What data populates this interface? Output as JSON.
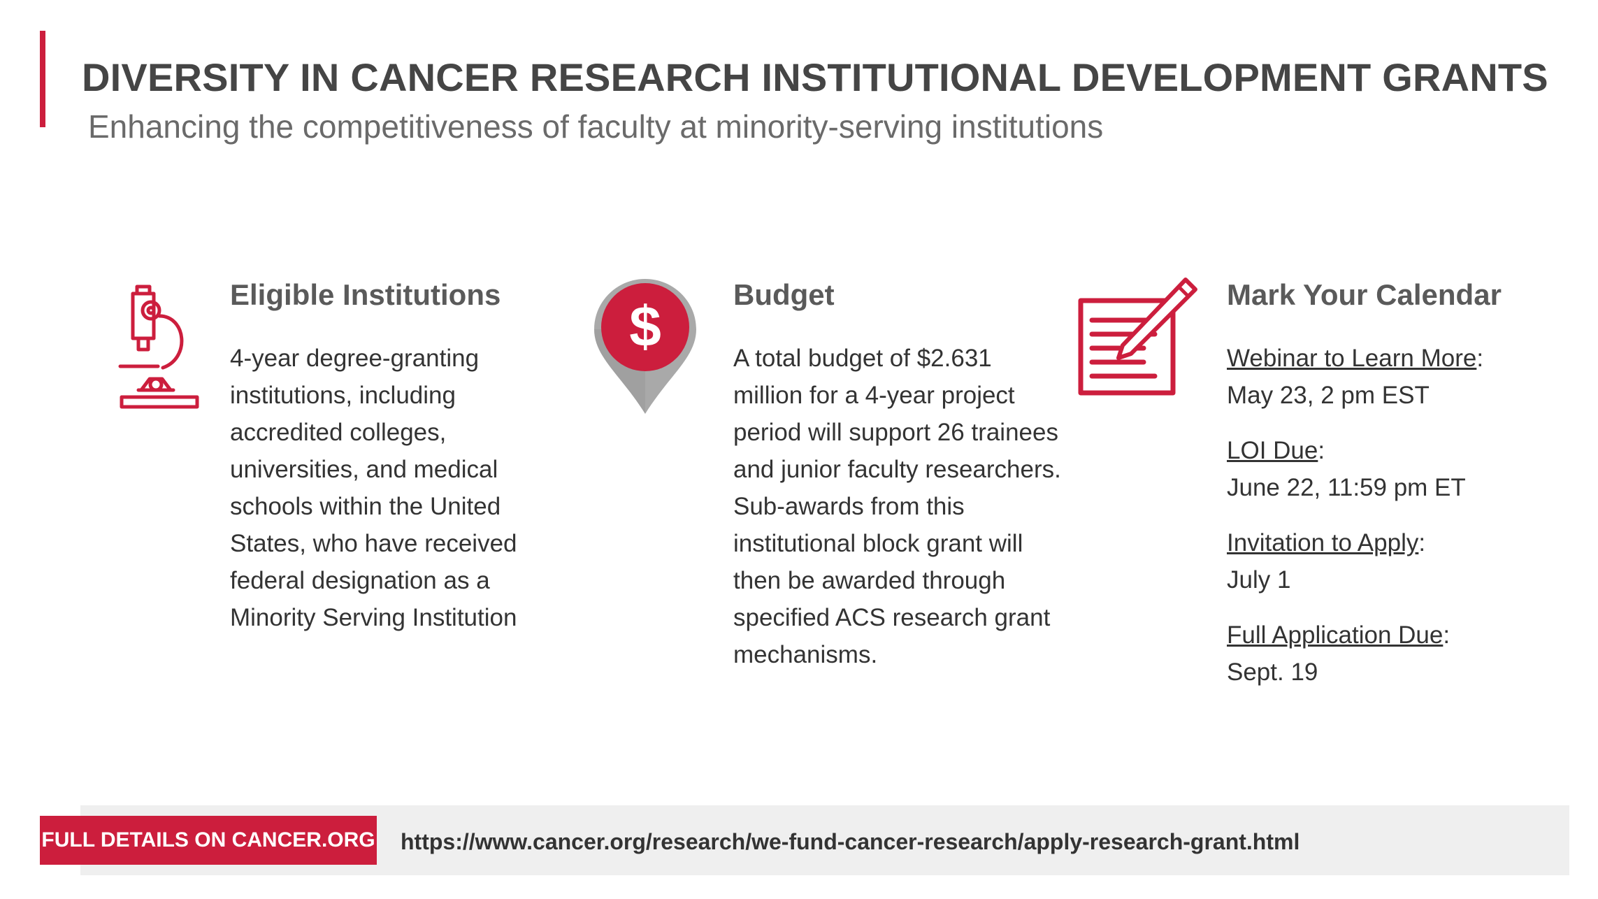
{
  "header": {
    "title": "DIVERSITY IN CANCER RESEARCH INSTITUTIONAL DEVELOPMENT GRANTS",
    "subtitle": "Enhancing the competitiveness of faculty at minority-serving institutions"
  },
  "columns": {
    "eligible": {
      "icon": "microscope-icon",
      "heading": "Eligible Institutions",
      "text": "4-year degree-granting institutions, including accredited colleges, universities, and medical schools within the United States, who have received federal designation as a Minority Serving Institution"
    },
    "budget": {
      "icon": "dollar-pin-icon",
      "heading": "Budget",
      "text": "A total budget of $2.631 million for a 4-year project period will support 26 trainees and junior faculty researchers. Sub-awards from this institutional block grant will then be awarded through specified ACS research grant mechanisms."
    },
    "calendar": {
      "icon": "document-pencil-icon",
      "heading": "Mark Your Calendar",
      "events": [
        {
          "label": "Webinar to Learn More",
          "date": "May 23, 2 pm EST"
        },
        {
          "label": "LOI Due",
          "date": "June 22, 11:59 pm ET"
        },
        {
          "label": "Invitation to Apply",
          "date": "July 1"
        },
        {
          "label": "Full Application Due",
          "date": "Sept. 19"
        }
      ]
    }
  },
  "footer": {
    "button_label": "FULL DETAILS ON CANCER.ORG",
    "url": "https://www.cancer.org/research/we-fund-cancer-research/apply-research-grant.html"
  },
  "colors": {
    "accent": "#cc1e3d",
    "pin_gray": "#a9a9a9",
    "footer_bg": "#efefef"
  }
}
